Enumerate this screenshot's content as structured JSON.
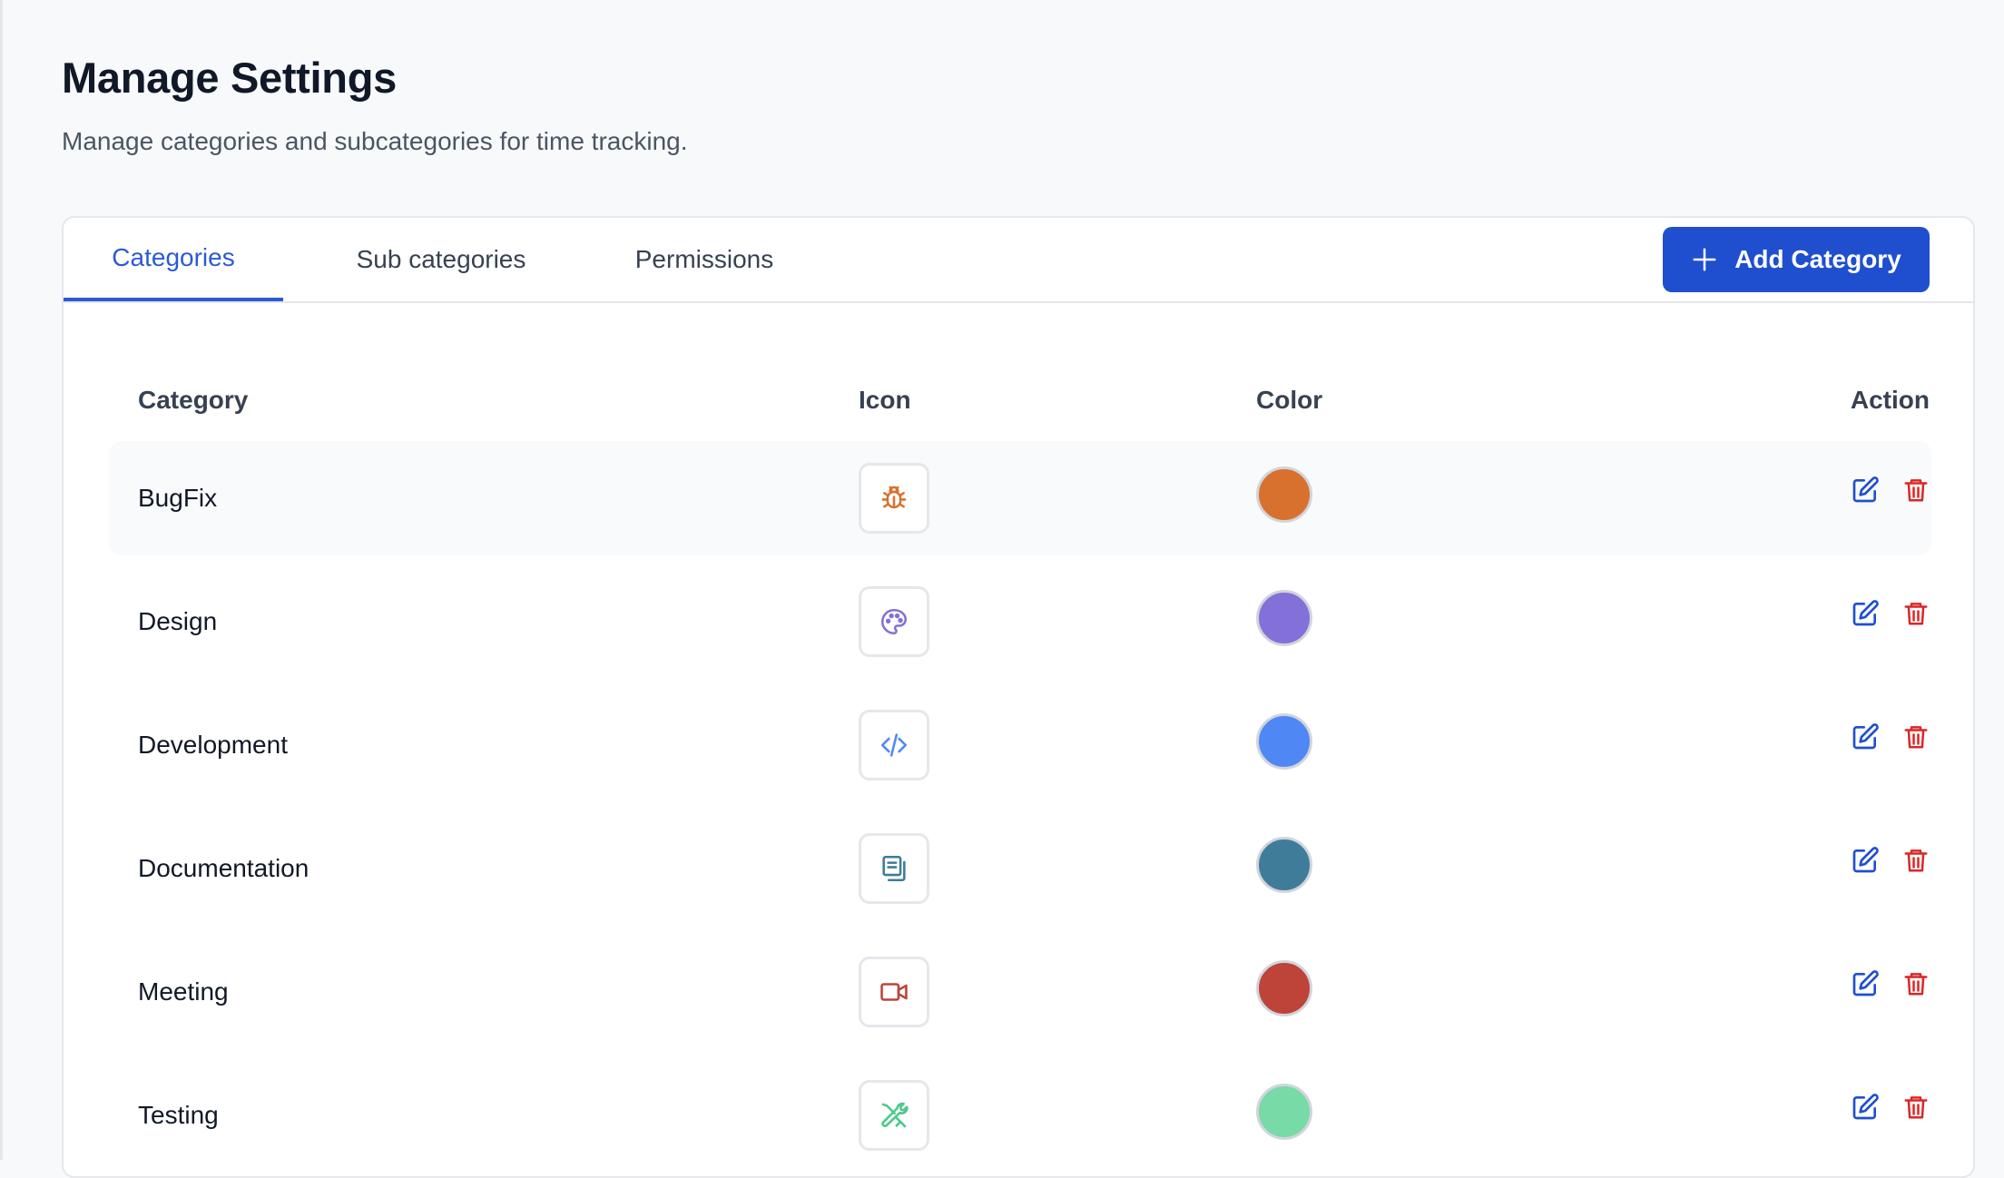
{
  "page": {
    "title": "Manage Settings",
    "subtitle": "Manage categories and subcategories for time tracking."
  },
  "tabs": [
    {
      "label": "Categories",
      "active": true
    },
    {
      "label": "Sub categories",
      "active": false
    },
    {
      "label": "Permissions",
      "active": false
    }
  ],
  "add_button": {
    "label": "Add Category",
    "icon": "plus-icon"
  },
  "table": {
    "headers": {
      "category": "Category",
      "icon": "Icon",
      "color": "Color",
      "action": "Action"
    },
    "rows": [
      {
        "name": "BugFix",
        "icon": "bug-icon",
        "color": "#D9712E"
      },
      {
        "name": "Design",
        "icon": "palette-icon",
        "color": "#8470D9"
      },
      {
        "name": "Development",
        "icon": "code-icon",
        "color": "#4F88F5"
      },
      {
        "name": "Documentation",
        "icon": "document-icon",
        "color": "#3E7C9A"
      },
      {
        "name": "Meeting",
        "icon": "video-icon",
        "color": "#BE4338"
      },
      {
        "name": "Testing",
        "icon": "tools-icon",
        "color": "#78DAA7"
      }
    ]
  },
  "actions": {
    "edit_icon": "edit-icon",
    "delete_icon": "trash-icon",
    "edit_color": "#1f4fcf",
    "delete_color": "#dc2626"
  }
}
